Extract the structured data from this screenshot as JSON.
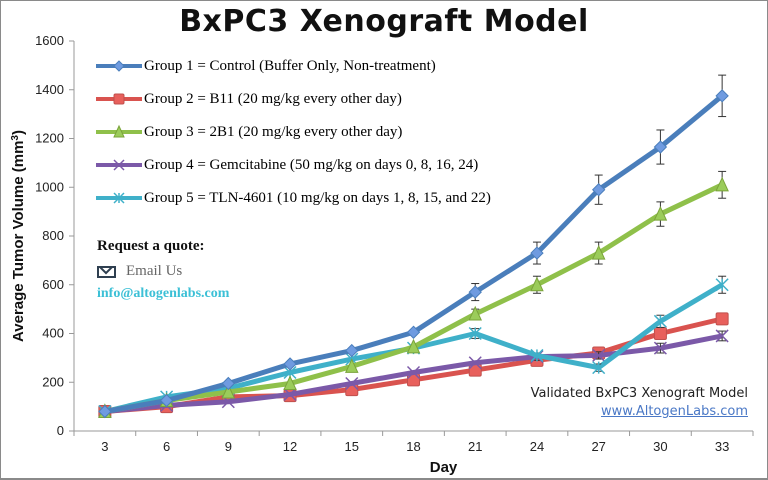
{
  "chart_data": {
    "type": "line",
    "title": "BxPC3 Xenograft Model",
    "xlabel": "Day",
    "ylabel": "Average Tumor Volume (mm³)",
    "ylabel_base": "Average Tumor Volume (mm",
    "ylabel_sup": "3",
    "ylabel_close": ")",
    "ylim": [
      0,
      1600
    ],
    "yticks": [
      0,
      200,
      400,
      600,
      800,
      1000,
      1200,
      1400,
      1600
    ],
    "x": [
      3,
      6,
      9,
      12,
      15,
      18,
      21,
      24,
      27,
      30,
      33
    ],
    "grid": false,
    "legend_position": "upper-left inside",
    "error_bars": true,
    "series": [
      {
        "name": "Group 1 = Control (Buffer Only, Non-treatment)",
        "color": "#4a7ebb",
        "marker": "diamond",
        "values": [
          80,
          125,
          195,
          275,
          330,
          405,
          570,
          730,
          990,
          1165,
          1375
        ],
        "errors": [
          0,
          0,
          0,
          0,
          0,
          0,
          35,
          45,
          60,
          70,
          85
        ]
      },
      {
        "name": "Group 2 = B11 (20 mg/kg every other day)",
        "color": "#d9534f",
        "marker": "square",
        "values": [
          80,
          100,
          140,
          145,
          170,
          210,
          250,
          290,
          320,
          400,
          460
        ],
        "errors": [
          0,
          0,
          0,
          0,
          0,
          0,
          0,
          0,
          0,
          0,
          0
        ]
      },
      {
        "name": "Group 3 =  2B1 (20 mg/kg every other day)",
        "color": "#8fc04a",
        "marker": "triangle",
        "values": [
          80,
          125,
          160,
          195,
          265,
          345,
          480,
          600,
          730,
          890,
          1010
        ],
        "errors": [
          0,
          0,
          0,
          0,
          0,
          0,
          20,
          35,
          45,
          50,
          55
        ]
      },
      {
        "name": "Group 4 =  Gemcitabine (50 mg/kg on days 0, 8, 16, 24)",
        "color": "#7b59a8",
        "marker": "x",
        "values": [
          80,
          105,
          120,
          150,
          195,
          240,
          280,
          305,
          310,
          340,
          390
        ],
        "errors": [
          0,
          0,
          0,
          0,
          0,
          0,
          0,
          15,
          15,
          20,
          20
        ]
      },
      {
        "name": "Group 5 = TLN-4601 (10 mg/kg on days 1, 8, 15, and 22)",
        "color": "#3fb0c9",
        "marker": "star",
        "values": [
          80,
          140,
          175,
          240,
          295,
          340,
          400,
          310,
          260,
          450,
          600
        ],
        "errors": [
          0,
          0,
          0,
          0,
          0,
          0,
          20,
          0,
          15,
          25,
          35
        ]
      }
    ]
  },
  "quote": {
    "title": "Request a quote:",
    "email_label": "Email Us",
    "email_address": "info@altogenlabs.com"
  },
  "footer": {
    "validated": "Validated BxPC3 Xenograft Model",
    "website": "www.AltogenLabs.com"
  }
}
